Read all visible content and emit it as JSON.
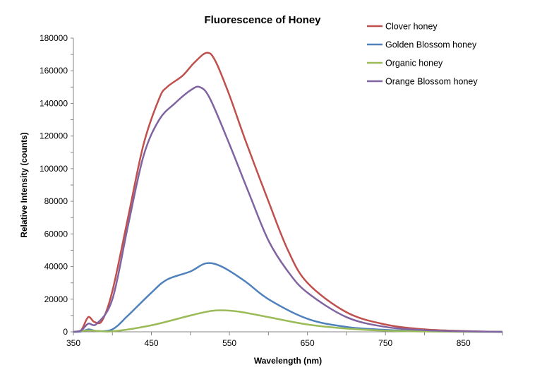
{
  "chart_data": {
    "type": "line",
    "title": "Fluorescence of Honey",
    "xlabel": "Wavelength (nm)",
    "ylabel": "Relative Intensity (counts)",
    "xlim": [
      350,
      900
    ],
    "ylim": [
      0,
      180000
    ],
    "x_ticks": [
      350,
      450,
      550,
      650,
      750,
      850
    ],
    "y_ticks": [
      0,
      20000,
      40000,
      60000,
      80000,
      100000,
      120000,
      140000,
      160000,
      180000
    ],
    "grid": false,
    "legend_position": "top-right",
    "series": [
      {
        "name": "Clover honey",
        "color": "#c0504d",
        "x": [
          350,
          360,
          369,
          377,
          387,
          400,
          420,
          440,
          460,
          470,
          490,
          505,
          521,
          532,
          550,
          570,
          600,
          625,
          650,
          700,
          750,
          800,
          850,
          900
        ],
        "y": [
          0,
          1000,
          9000,
          6000,
          7000,
          25000,
          70000,
          115000,
          143000,
          150000,
          157000,
          165000,
          171000,
          166000,
          145000,
          118000,
          80000,
          50000,
          30000,
          12000,
          4500,
          1500,
          500,
          0
        ]
      },
      {
        "name": "Golden Blossom honey",
        "color": "#4f81bd",
        "x": [
          350,
          360,
          370,
          380,
          400,
          420,
          450,
          470,
          500,
          520,
          540,
          570,
          600,
          650,
          700,
          750,
          800,
          850,
          900
        ],
        "y": [
          0,
          200,
          1500,
          500,
          1500,
          10000,
          24000,
          32000,
          37000,
          42000,
          40000,
          31000,
          20000,
          8000,
          3000,
          1200,
          400,
          100,
          0
        ]
      },
      {
        "name": "Organic honey",
        "color": "#9bbb59",
        "x": [
          350,
          370,
          400,
          450,
          500,
          530,
          560,
          600,
          650,
          700,
          750,
          800,
          850,
          900
        ],
        "y": [
          0,
          800,
          300,
          4000,
          10000,
          13000,
          12500,
          9000,
          4500,
          2000,
          700,
          200,
          50,
          0
        ]
      },
      {
        "name": "Orange Blossom honey",
        "color": "#8064a2",
        "x": [
          350,
          360,
          369,
          380,
          400,
          420,
          440,
          460,
          480,
          500,
          512,
          525,
          550,
          575,
          600,
          625,
          650,
          700,
          750,
          800,
          850,
          900
        ],
        "y": [
          0,
          800,
          5000,
          5000,
          20000,
          65000,
          108000,
          130000,
          140000,
          148000,
          150000,
          143000,
          115000,
          85000,
          56000,
          37000,
          24000,
          9000,
          3000,
          1000,
          300,
          0
        ]
      }
    ]
  }
}
